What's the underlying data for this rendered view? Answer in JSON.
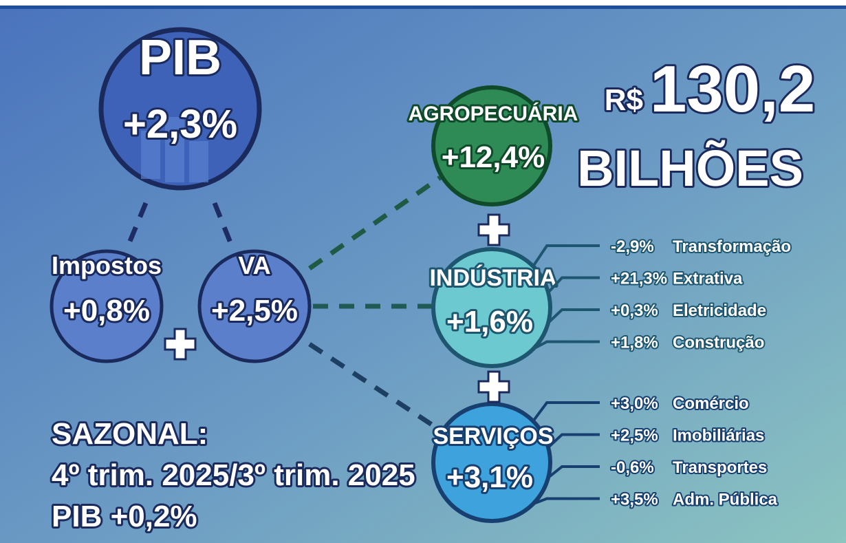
{
  "pib": {
    "label": "PIB",
    "value": "+2,3%"
  },
  "components": [
    {
      "label": "Impostos",
      "value": "+0,8%"
    },
    {
      "label": "VA",
      "value": "+2,5%"
    }
  ],
  "sectors": [
    {
      "label": "AGROPECUÁRIA",
      "value": "+12,4%"
    },
    {
      "label": "INDÚSTRIA",
      "value": "+1,6%",
      "subsectors": [
        {
          "value": "-2,9%",
          "label": "Transformação"
        },
        {
          "value": "+21,3%",
          "label": "Extrativa"
        },
        {
          "value": "+0,3%",
          "label": "Eletricidade"
        },
        {
          "value": "+1,8%",
          "label": "Construção"
        }
      ]
    },
    {
      "label": "SERVIÇOS",
      "value": "+3,1%",
      "subsectors": [
        {
          "value": "+3,0%",
          "label": "Comércio"
        },
        {
          "value": "+2,5%",
          "label": "Imobiliárias"
        },
        {
          "value": "-0,6%",
          "label": "Transportes"
        },
        {
          "value": "+3,5%",
          "label": "Adm. Pública"
        }
      ]
    }
  ],
  "total": {
    "currency": "R$",
    "amount": "130,2",
    "unit": "BILHÕES"
  },
  "seasonal": {
    "title": "SAZONAL:",
    "period": "4º trim. 2025/3º trim. 2025",
    "pib": "PIB +0,2%"
  }
}
